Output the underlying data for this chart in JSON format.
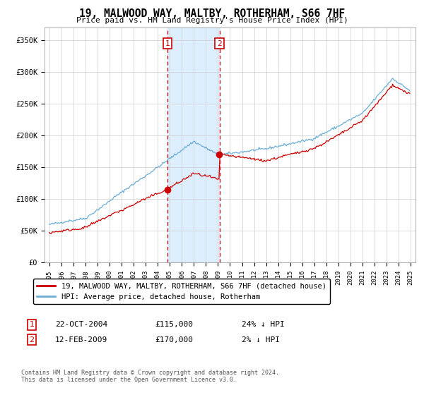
{
  "title": "19, MALWOOD WAY, MALTBY, ROTHERHAM, S66 7HF",
  "subtitle": "Price paid vs. HM Land Registry's House Price Index (HPI)",
  "sale1_date": "22-OCT-2004",
  "sale1_price": 115000,
  "sale1_pct": "24% ↓ HPI",
  "sale2_date": "12-FEB-2009",
  "sale2_price": 170000,
  "sale2_pct": "2% ↓ HPI",
  "hpi_color": "#6baed6",
  "price_color": "#cc0000",
  "highlight_color": "#ddeeff",
  "ylabel_ticks": [
    0,
    50000,
    100000,
    150000,
    200000,
    250000,
    300000,
    350000
  ],
  "ylabel_labels": [
    "£0",
    "£50K",
    "£100K",
    "£150K",
    "£200K",
    "£250K",
    "£300K",
    "£350K"
  ],
  "legend_label_red": "19, MALWOOD WAY, MALTBY, ROTHERHAM, S66 7HF (detached house)",
  "legend_label_blue": "HPI: Average price, detached house, Rotherham",
  "footnote": "Contains HM Land Registry data © Crown copyright and database right 2024.\nThis data is licensed under the Open Government Licence v3.0."
}
